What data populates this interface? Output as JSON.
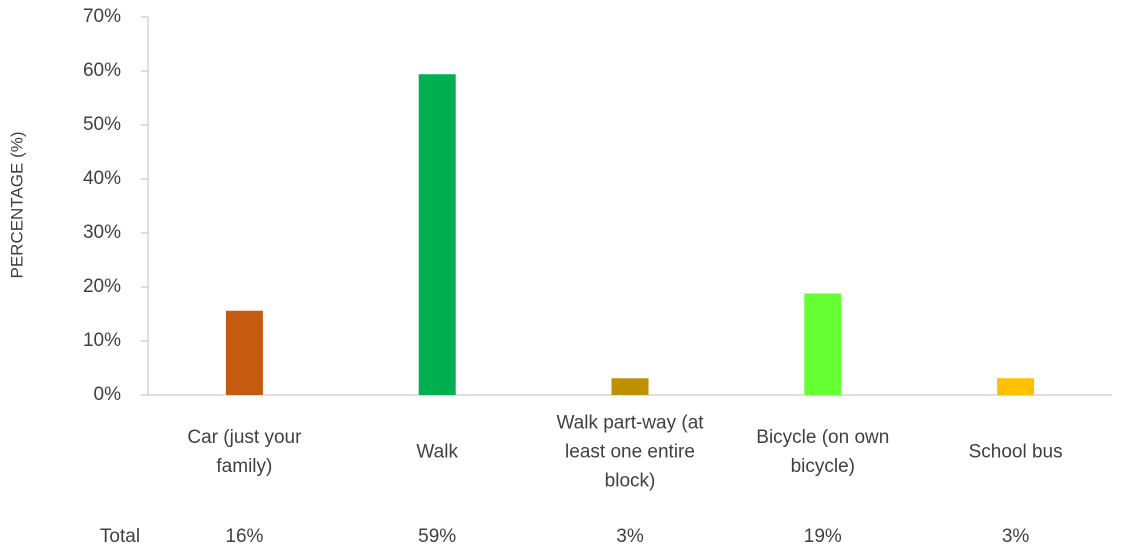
{
  "chart_data": {
    "type": "bar",
    "ylabel": "PERCENTAGE (%)",
    "categories": [
      "Car (just your family)",
      "Walk",
      "Walk part-way (at least one entire block)",
      "Bicycle (on own bicycle)",
      "School bus"
    ],
    "values": [
      15.6,
      59.4,
      3.1,
      18.8,
      3.1
    ],
    "value_labels": [
      "16%",
      "59%",
      "3%",
      "19%",
      "3%"
    ],
    "colors": [
      "#c55a11",
      "#00b050",
      "#bf9000",
      "#66ff33",
      "#ffc000"
    ],
    "table_row_label": "Total",
    "ylim": [
      0,
      70
    ],
    "yticks": [
      {
        "value": 0,
        "label": "0%"
      },
      {
        "value": 10,
        "label": "10%"
      },
      {
        "value": 20,
        "label": "20%"
      },
      {
        "value": 30,
        "label": "30%"
      },
      {
        "value": 40,
        "label": "40%"
      },
      {
        "value": 50,
        "label": "50%"
      },
      {
        "value": 60,
        "label": "60%"
      },
      {
        "value": 70,
        "label": "70%"
      }
    ],
    "grid": false
  }
}
